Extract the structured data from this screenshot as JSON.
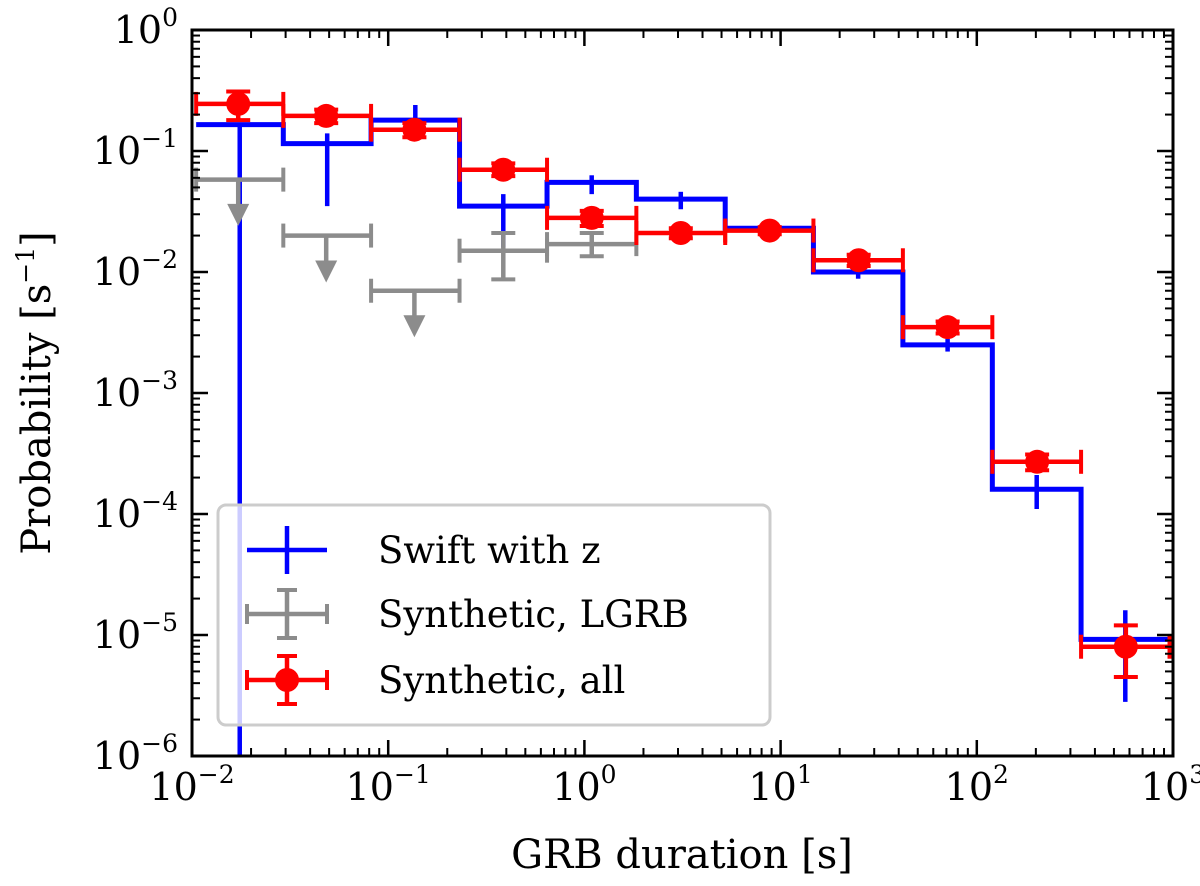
{
  "chart_data": {
    "type": "scatter",
    "title": "",
    "xlabel": "GRB duration [s]",
    "ylabel_text": "Probability [s",
    "ylabel_exp": "−1",
    "ylabel_close": "]",
    "xscale": "log",
    "yscale": "log",
    "xlim": [
      0.01,
      1000
    ],
    "ylim": [
      1e-06,
      1
    ],
    "x_ticks": [
      {
        "base": "10",
        "exp": "−2",
        "value": 0.01
      },
      {
        "base": "10",
        "exp": "−1",
        "value": 0.1
      },
      {
        "base": "10",
        "exp": "0",
        "value": 1
      },
      {
        "base": "10",
        "exp": "1",
        "value": 10
      },
      {
        "base": "10",
        "exp": "2",
        "value": 100
      },
      {
        "base": "10",
        "exp": "3",
        "value": 1000
      }
    ],
    "y_ticks": [
      {
        "base": "10",
        "exp": "−6",
        "value": 1e-06
      },
      {
        "base": "10",
        "exp": "−5",
        "value": 1e-05
      },
      {
        "base": "10",
        "exp": "−4",
        "value": 0.0001
      },
      {
        "base": "10",
        "exp": "−3",
        "value": 0.001
      },
      {
        "base": "10",
        "exp": "−2",
        "value": 0.01
      },
      {
        "base": "10",
        "exp": "−1",
        "value": 0.1
      },
      {
        "base": "10",
        "exp": "0",
        "value": 1
      }
    ],
    "grid": false,
    "legend_position": "lower-left",
    "series": [
      {
        "name": "Swift with z",
        "color": "#0000ff",
        "style": "step-histogram",
        "bin_edges": [
          0.0105,
          0.0292,
          0.0818,
          0.231,
          0.645,
          1.84,
          5.22,
          14.7,
          42.0,
          120.0,
          340.0,
          960.0
        ],
        "values": [
          0.165,
          0.115,
          0.18,
          0.035,
          0.055,
          0.04,
          0.023,
          0.01,
          0.0025,
          0.00016,
          9.2e-06
        ],
        "err_low": [
          1e-06,
          0.035,
          0.13,
          0.016,
          0.044,
          0.033,
          0.021,
          0.0088,
          0.0022,
          0.00011,
          2.8e-06
        ],
        "err_high": [
          0.165,
          0.14,
          0.24,
          0.044,
          0.063,
          0.046,
          0.025,
          0.0112,
          0.0028,
          0.00021,
          1.6e-05
        ]
      },
      {
        "name": "Synthetic, LGRB",
        "color": "#8c8c8c",
        "style": "errorbar-upper-limits",
        "x": [
          0.0172,
          0.0483,
          0.136,
          0.386,
          1.09
        ],
        "x_low": [
          0.0105,
          0.0292,
          0.0818,
          0.231,
          0.645
        ],
        "x_high": [
          0.0292,
          0.0818,
          0.231,
          0.645,
          1.84
        ],
        "values": [
          0.058,
          0.02,
          0.007,
          0.015,
          0.017
        ],
        "err_low": [
          0.025,
          0.0085,
          0.003,
          0.0087,
          0.0135
        ],
        "err_high": [
          0.058,
          0.02,
          0.007,
          0.021,
          0.021
        ],
        "upper_limit": [
          true,
          true,
          true,
          false,
          false
        ]
      },
      {
        "name": "Synthetic, all",
        "color": "#ff0000",
        "style": "errorbar-markers",
        "x": [
          0.0172,
          0.0483,
          0.136,
          0.386,
          1.09,
          3.1,
          8.8,
          25.0,
          71.0,
          203.0,
          575.0
        ],
        "x_low": [
          0.0105,
          0.0292,
          0.0818,
          0.231,
          0.645,
          1.84,
          5.22,
          14.7,
          42.0,
          120.0,
          340.0
        ],
        "x_high": [
          0.0292,
          0.0818,
          0.231,
          0.645,
          1.84,
          5.22,
          14.7,
          42.0,
          120.0,
          340.0,
          960.0
        ],
        "values": [
          0.245,
          0.195,
          0.15,
          0.07,
          0.028,
          0.021,
          0.022,
          0.0125,
          0.0035,
          0.00027,
          8e-06
        ],
        "err_low": [
          0.18,
          0.17,
          0.13,
          0.062,
          0.024,
          0.019,
          0.0205,
          0.0112,
          0.0031,
          0.00023,
          4.5e-06
        ],
        "err_high": [
          0.31,
          0.22,
          0.17,
          0.079,
          0.032,
          0.023,
          0.0235,
          0.0139,
          0.0039,
          0.00031,
          1.2e-05
        ]
      }
    ]
  }
}
